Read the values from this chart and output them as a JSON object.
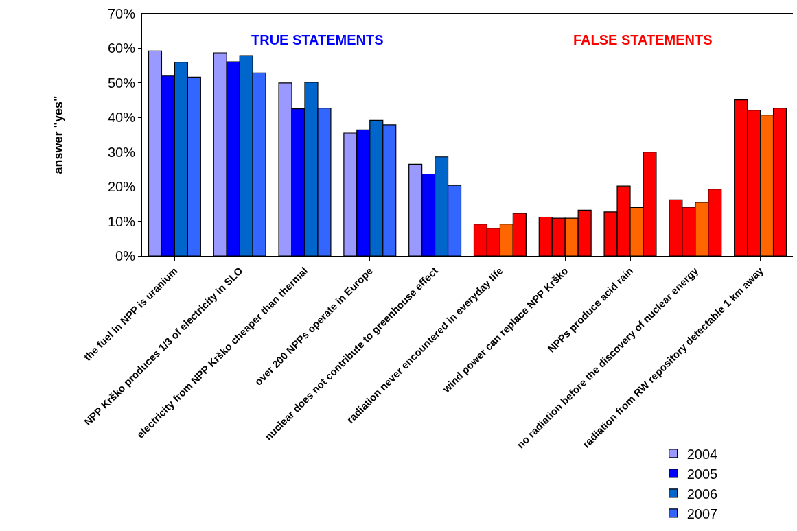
{
  "chart_data": {
    "type": "bar",
    "categories": [
      "the fuel in NPP is uranium",
      "NPP Krško produces 1/3 of electricity in SLO",
      "electricity from NPP Krško cheaper than thermal",
      "over 200 NPPs operate in Europe",
      "nuclear does not contribute to greenhouse effect",
      "radiation never encountered in everyday life",
      "wind power can replace NPP Krško",
      "NPPs produce acid rain",
      "no radiation before the discovery of nuclear energy",
      "radiation from RW repository detectable 1 km away"
    ],
    "series": [
      {
        "name": "2004",
        "colors": [
          "#9999ff",
          "#9999ff",
          "#9999ff",
          "#9999ff",
          "#9999ff",
          "#ff0000",
          "#ff0000",
          "#ff0000",
          "#ff0000",
          "#ff0000"
        ],
        "values": [
          59.2,
          58.7,
          50.0,
          35.5,
          26.5,
          9.2,
          11.2,
          12.7,
          16.2,
          45.1
        ]
      },
      {
        "name": "2005",
        "colors": [
          "#0000ff",
          "#0000ff",
          "#0000ff",
          "#0000ff",
          "#0000ff",
          "#ff0000",
          "#ff0000",
          "#ff0000",
          "#ff0000",
          "#ff0000"
        ],
        "values": [
          52.0,
          56.1,
          42.5,
          36.4,
          23.7,
          8.0,
          10.9,
          20.2,
          14.1,
          42.1
        ]
      },
      {
        "name": "2006",
        "colors": [
          "#0066cc",
          "#0066cc",
          "#0066cc",
          "#0066cc",
          "#0066cc",
          "#ff6600",
          "#ff6600",
          "#ff6600",
          "#ff6600",
          "#ff6600"
        ],
        "values": [
          56.0,
          57.9,
          50.2,
          39.2,
          28.6,
          9.2,
          10.9,
          14.0,
          15.5,
          40.7
        ]
      },
      {
        "name": "2007",
        "colors": [
          "#3366ff",
          "#3366ff",
          "#3366ff",
          "#3366ff",
          "#3366ff",
          "#ff0000",
          "#ff0000",
          "#ff0000",
          "#ff0000",
          "#ff0000"
        ],
        "values": [
          51.7,
          52.9,
          42.7,
          37.9,
          20.4,
          12.3,
          13.2,
          30.0,
          19.3,
          42.7
        ]
      }
    ],
    "ylabel": "answer \"yes\"",
    "ylim": [
      0,
      70
    ],
    "yticks": [
      {
        "value": 0,
        "label": "0%"
      },
      {
        "value": 10,
        "label": "10%"
      },
      {
        "value": 20,
        "label": "20%"
      },
      {
        "value": 30,
        "label": "30%"
      },
      {
        "value": 40,
        "label": "40%"
      },
      {
        "value": 50,
        "label": "50%"
      },
      {
        "value": 60,
        "label": "60%"
      },
      {
        "value": 70,
        "label": "70%"
      }
    ],
    "annotations": [
      "TRUE STATEMENTS",
      "FALSE STATEMENTS"
    ],
    "legend": "bottom right"
  }
}
